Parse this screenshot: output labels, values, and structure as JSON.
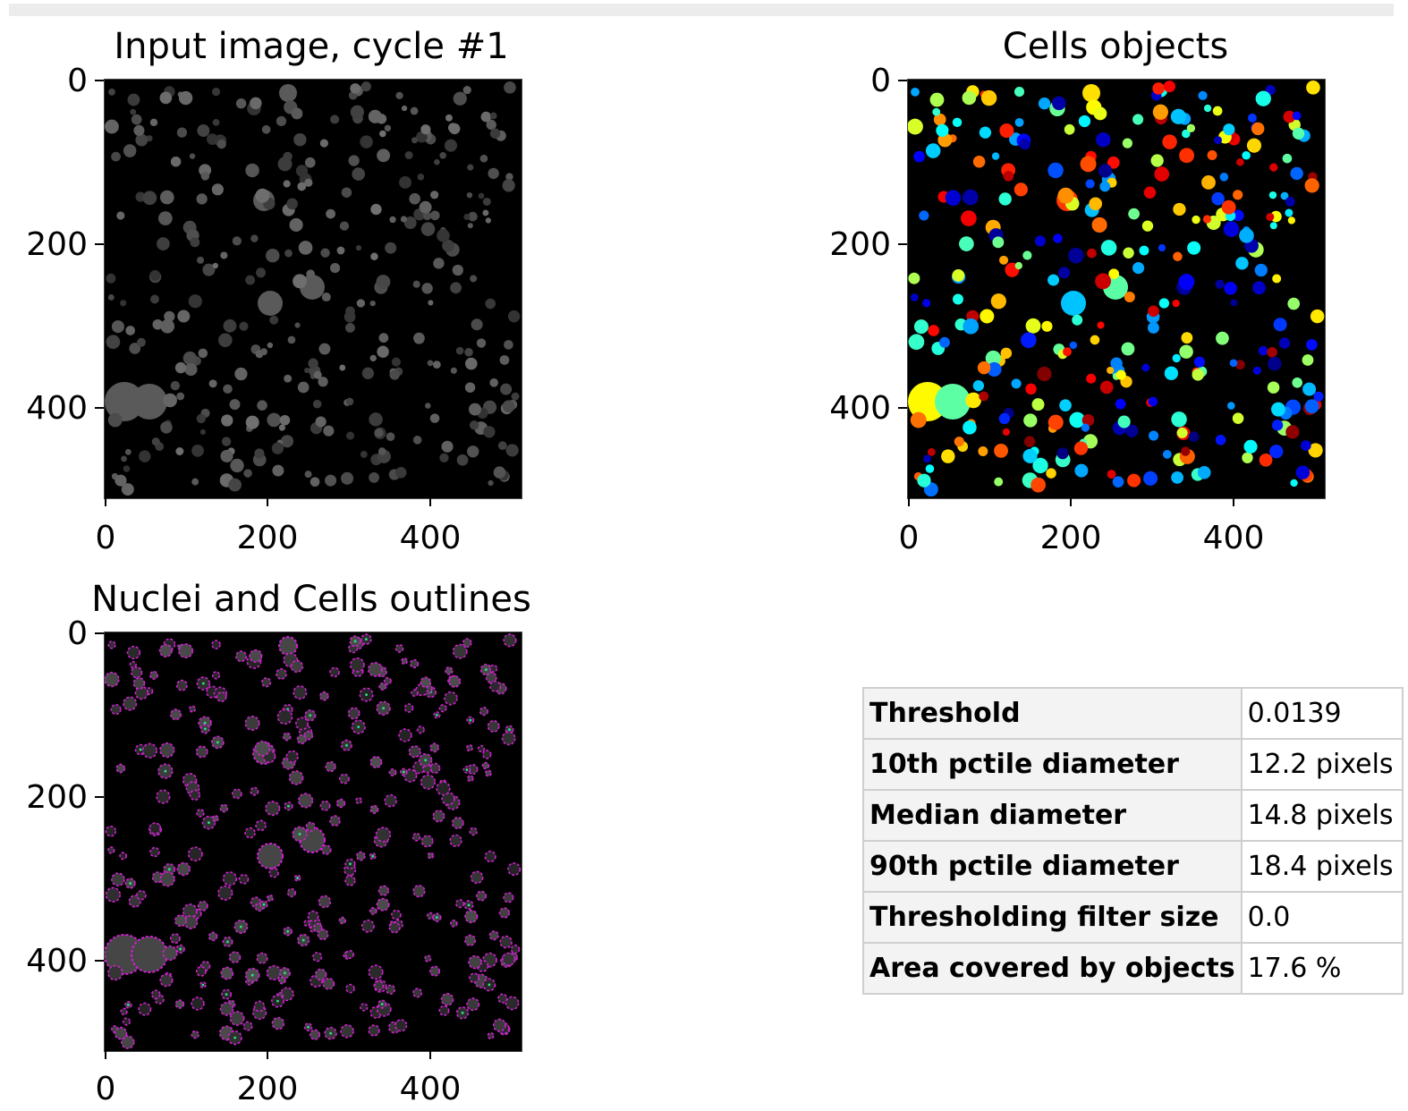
{
  "panels": [
    {
      "title": "Input image, cycle #1",
      "yticks": [
        "0",
        "200",
        "400"
      ],
      "xticks": [
        "0",
        "200",
        "400"
      ]
    },
    {
      "title": "Cells objects",
      "yticks": [
        "0",
        "200",
        "400"
      ],
      "xticks": [
        "0",
        "200",
        "400"
      ]
    },
    {
      "title": "Nuclei and Cells outlines",
      "yticks": [
        "0",
        "200",
        "400"
      ],
      "xticks": [
        "0",
        "200",
        "400"
      ]
    }
  ],
  "stats": [
    {
      "name": "Threshold",
      "value": "0.0139"
    },
    {
      "name": "10th pctile diameter",
      "value": "12.2 pixels"
    },
    {
      "name": "Median diameter",
      "value": "14.8 pixels"
    },
    {
      "name": "90th pctile diameter",
      "value": "18.4 pixels"
    },
    {
      "name": "Thresholding filter size",
      "value": "0.0"
    },
    {
      "name": "Area covered by objects",
      "value": "17.6 %"
    }
  ],
  "colors": {
    "outline": "#d21fd2",
    "nucleus_outline": "#2ee08a",
    "background": "#000000"
  }
}
